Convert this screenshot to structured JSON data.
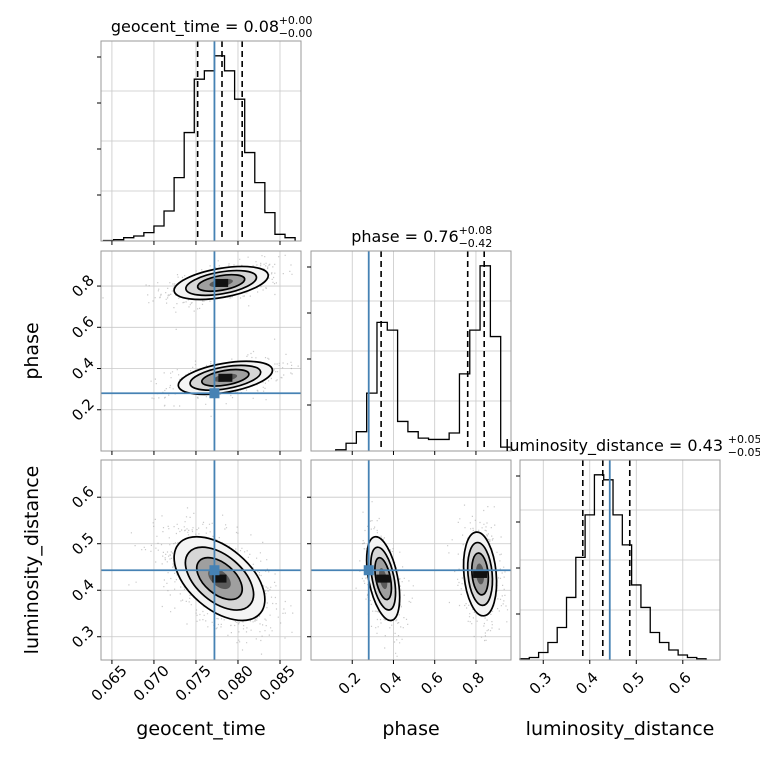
{
  "chart_data": {
    "type": "corner",
    "parameters": [
      "geocent_time",
      "phase",
      "luminosity_distance"
    ],
    "truths": {
      "geocent_time": 0.0772,
      "phase": 0.28,
      "luminosity_distance": 0.443
    },
    "ranges": {
      "geocent_time": [
        0.0637,
        0.0875
      ],
      "phase": [
        0.0,
        0.97
      ],
      "luminosity_distance": [
        0.25,
        0.68
      ]
    },
    "ticks": {
      "geocent_time": [
        0.065,
        0.07,
        0.075,
        0.08,
        0.085
      ],
      "phase": [
        0.2,
        0.4,
        0.6,
        0.8
      ],
      "luminosity_distance": [
        0.3,
        0.4,
        0.5,
        0.6
      ]
    },
    "tick_labels": {
      "geocent_time": [
        "0.065",
        "0.070",
        "0.075",
        "0.080",
        "0.085"
      ],
      "phase": [
        "0.2",
        "0.4",
        "0.6",
        "0.8"
      ],
      "luminosity_distance": [
        "0.3",
        "0.4",
        "0.5",
        "0.6"
      ]
    },
    "titles": [
      {
        "param": "geocent_time",
        "text": "geocent_time = 0.08",
        "sup": "+0.00",
        "sub": "−0.00"
      },
      {
        "param": "phase",
        "text": "phase = 0.76",
        "sup": "+0.08",
        "sub": "−0.42"
      },
      {
        "param": "luminosity_distance",
        "text": "luminosity_distance = 0.43",
        "sup": "+0.05",
        "sub": "−0.05"
      }
    ],
    "quantiles": {
      "geocent_time": [
        0.0752,
        0.0781,
        0.0805
      ],
      "phase": [
        0.34,
        0.76,
        0.84
      ],
      "luminosity_distance": [
        0.385,
        0.428,
        0.486
      ]
    },
    "histograms": {
      "geocent_time": {
        "edges": [
          0.064,
          0.0652,
          0.0664,
          0.0676,
          0.0688,
          0.07,
          0.0712,
          0.0724,
          0.0736,
          0.0748,
          0.076,
          0.0772,
          0.0784,
          0.0796,
          0.0808,
          0.082,
          0.0832,
          0.0844,
          0.0856,
          0.0868
        ],
        "counts": [
          0.3,
          0.8,
          2,
          3,
          5,
          9,
          18,
          38,
          65,
          97,
          102,
          111,
          102,
          85,
          53,
          35,
          17,
          4,
          2
        ]
      },
      "phase": {
        "edges": [
          0.12,
          0.17,
          0.22,
          0.27,
          0.32,
          0.37,
          0.42,
          0.47,
          0.52,
          0.57,
          0.62,
          0.67,
          0.72,
          0.77,
          0.82,
          0.87,
          0.92
        ],
        "counts": [
          1,
          6,
          15,
          45,
          100,
          94,
          23,
          15,
          10,
          9,
          9,
          14,
          60,
          94,
          144,
          89,
          3
        ]
      },
      "luminosity_distance": {
        "edges": [
          0.25,
          0.27,
          0.29,
          0.31,
          0.33,
          0.35,
          0.37,
          0.39,
          0.41,
          0.43,
          0.45,
          0.47,
          0.49,
          0.51,
          0.53,
          0.55,
          0.57,
          0.59,
          0.61,
          0.63,
          0.65
        ],
        "counts": [
          0.5,
          1,
          3,
          7,
          13,
          25,
          41,
          58,
          74,
          72,
          58,
          46,
          30,
          21,
          11,
          7,
          4,
          2,
          1,
          0.5
        ]
      }
    },
    "posterior_modes": {
      "geocent_time_vs_phase": [
        {
          "center": [
            0.078,
            0.815
          ],
          "sigma": [
            0.0028,
            0.04
          ],
          "rho": 0.45,
          "weight": 0.55
        },
        {
          "center": [
            0.0785,
            0.355
          ],
          "sigma": [
            0.0028,
            0.04
          ],
          "rho": 0.45,
          "weight": 0.45
        }
      ],
      "geocent_time_vs_luminosity_distance": [
        {
          "center": [
            0.0778,
            0.425
          ],
          "sigma": [
            0.0027,
            0.045
          ],
          "rho": -0.5,
          "weight": 1.0
        }
      ],
      "phase_vs_luminosity_distance": [
        {
          "center": [
            0.35,
            0.425
          ],
          "sigma": [
            0.04,
            0.045
          ],
          "rho": -0.45,
          "weight": 0.45
        },
        {
          "center": [
            0.82,
            0.435
          ],
          "sigma": [
            0.04,
            0.045
          ],
          "rho": -0.2,
          "weight": 0.55
        }
      ]
    },
    "truth_color": "#4682b4",
    "grid": true
  }
}
